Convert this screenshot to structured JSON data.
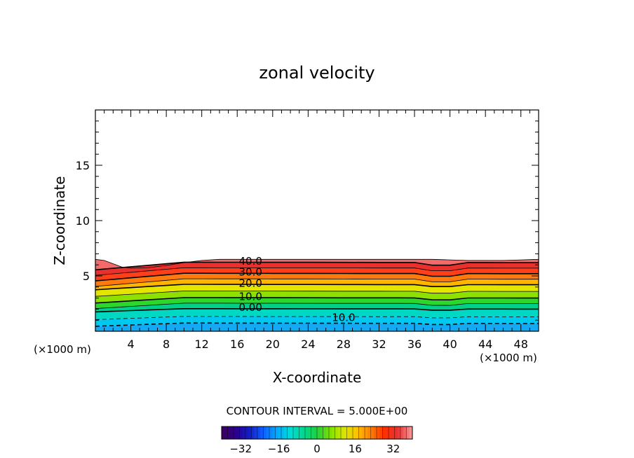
{
  "chart_data": {
    "type": "heatmap",
    "title": "zonal velocity",
    "xlabel": "X-coordinate",
    "ylabel": "Z-coordinate",
    "x_unit_left": "(×1000 m)",
    "x_unit_right": "(×1000 m)",
    "xlim": [
      0,
      50
    ],
    "ylim": [
      0,
      20
    ],
    "x_ticks": [
      4,
      8,
      12,
      16,
      20,
      24,
      28,
      32,
      36,
      40,
      44,
      48
    ],
    "y_ticks": [
      5,
      10,
      15
    ],
    "contour_interval_text": "CONTOUR INTERVAL = 5.000E+00",
    "contour_labels": [
      {
        "text": "40.0",
        "x": 17.5,
        "y": 6.4
      },
      {
        "text": "30.0",
        "x": 17.5,
        "y": 5.4
      },
      {
        "text": "20.0",
        "x": 17.5,
        "y": 4.4
      },
      {
        "text": "10.0",
        "x": 17.5,
        "y": 3.2
      },
      {
        "text": "0.00",
        "x": 17.5,
        "y": 2.2
      },
      {
        "text": "10.0",
        "x": 28.0,
        "y": 1.3
      }
    ],
    "contour_levels": [
      40,
      35,
      30,
      25,
      20,
      15,
      10,
      5,
      0,
      -5,
      -10
    ],
    "contour_levels_y_at_x20": [
      6.4,
      5.9,
      5.4,
      4.9,
      4.4,
      3.8,
      3.2,
      2.7,
      2.2,
      1.5,
      0.9
    ],
    "layers": [
      {
        "level": "top",
        "value": 42,
        "color": "#f26a6a"
      },
      {
        "level": "b1",
        "value": 38,
        "color": "#e9302c"
      },
      {
        "level": "b2",
        "value": 32,
        "color": "#ff3e1a"
      },
      {
        "level": "b3",
        "value": 26,
        "color": "#ff7a0e"
      },
      {
        "level": "b4",
        "value": 20,
        "color": "#ffb400"
      },
      {
        "level": "b5",
        "value": 16,
        "color": "#e4e600"
      },
      {
        "level": "b6",
        "value": 11,
        "color": "#8ee000"
      },
      {
        "level": "b7",
        "value": 6,
        "color": "#2dd62a"
      },
      {
        "level": "b8",
        "value": 2,
        "color": "#00cf88"
      },
      {
        "level": "b9",
        "value": -4,
        "color": "#00d8c4"
      },
      {
        "level": "b10",
        "value": -9,
        "color": "#00c8ee"
      },
      {
        "level": "b11",
        "value": -14,
        "color": "#13aaf5"
      }
    ],
    "colorbar": {
      "min": -40,
      "max": 40,
      "tick_labels": [
        "−32",
        "−16",
        "0",
        "16",
        "32"
      ],
      "tick_values": [
        -32,
        -16,
        0,
        16,
        32
      ],
      "colors": [
        "#3b0064",
        "#2a0090",
        "#1020c8",
        "#1060ff",
        "#00a8ff",
        "#00dcd8",
        "#00d890",
        "#20d040",
        "#80e000",
        "#d8e800",
        "#ffc000",
        "#ff8000",
        "#ff3000",
        "#e83030",
        "#f49090"
      ]
    }
  }
}
